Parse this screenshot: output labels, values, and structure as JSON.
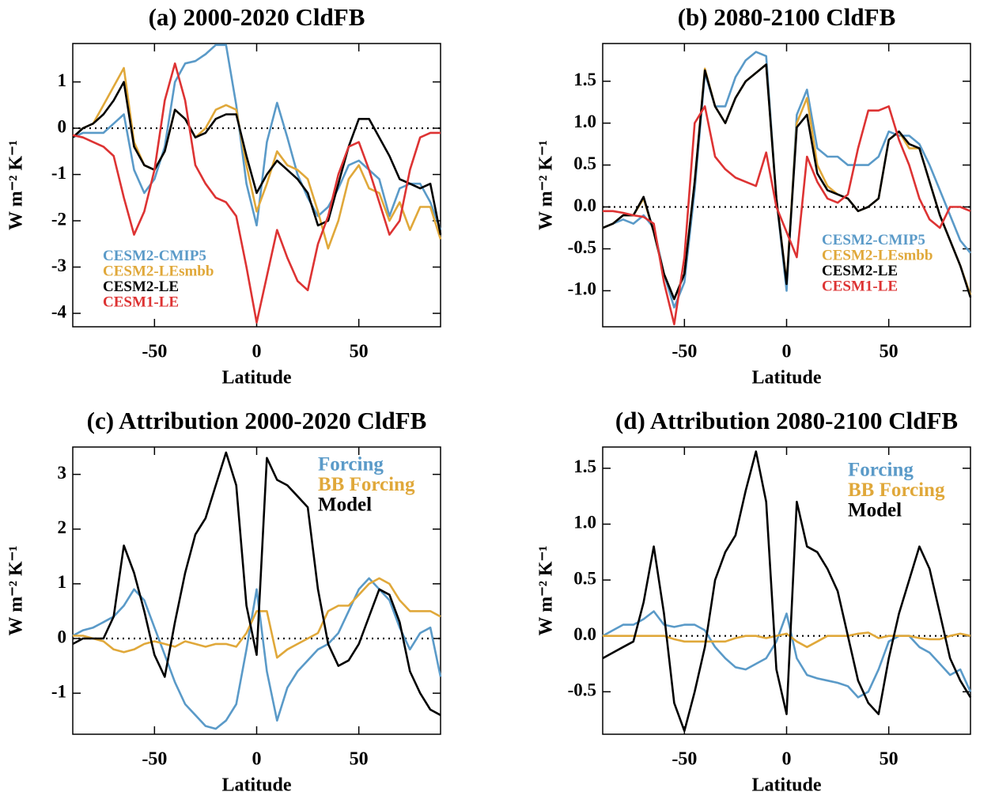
{
  "chart_data": [
    {
      "type": "line",
      "title": "(a) 2000-2020 CldFB",
      "xlabel": "Latitude",
      "ylabel": "W m⁻² K⁻¹",
      "x": [
        -90,
        -85,
        -80,
        -75,
        -70,
        -65,
        -60,
        -55,
        -50,
        -45,
        -40,
        -35,
        -30,
        -25,
        -20,
        -15,
        -10,
        -5,
        0,
        5,
        10,
        15,
        20,
        25,
        30,
        35,
        40,
        45,
        50,
        55,
        60,
        65,
        70,
        75,
        80,
        85,
        90
      ],
      "xlim": [
        -90,
        90
      ],
      "xticks": [
        -50,
        0,
        50
      ],
      "ylim": [
        -4.29,
        1.83
      ],
      "yticks": [
        -4,
        -3,
        -2,
        -1,
        0,
        1
      ],
      "hline": 0,
      "legend": "lower-left",
      "series": [
        {
          "name": "CESM2-CMIP5",
          "color": "#5a9ac8",
          "values": [
            -0.2,
            -0.1,
            -0.1,
            -0.1,
            0.1,
            0.3,
            -0.9,
            -1.4,
            -1.1,
            -0.4,
            1.0,
            1.4,
            1.45,
            1.6,
            1.8,
            1.8,
            0.5,
            -1.2,
            -2.1,
            -0.3,
            0.55,
            -0.2,
            -1.0,
            -1.5,
            -1.9,
            -1.7,
            -1.3,
            -0.8,
            -0.7,
            -0.9,
            -1.1,
            -1.9,
            -1.3,
            -1.2,
            -1.2,
            -1.6,
            -2.2
          ]
        },
        {
          "name": "CESM2-LEsmbb",
          "color": "#e0a83a",
          "values": [
            -0.2,
            0.0,
            0.1,
            0.5,
            0.9,
            1.3,
            -0.3,
            -0.8,
            -0.9,
            -0.5,
            0.4,
            0.2,
            -0.2,
            0.0,
            0.4,
            0.5,
            0.4,
            -0.8,
            -1.8,
            -1.2,
            -0.5,
            -0.8,
            -0.9,
            -1.1,
            -1.8,
            -2.6,
            -2.0,
            -1.1,
            -0.8,
            -1.3,
            -1.4,
            -2.0,
            -1.6,
            -2.2,
            -1.7,
            -1.7,
            -2.4
          ]
        },
        {
          "name": "CESM2-LE",
          "color": "#000000",
          "values": [
            -0.2,
            0.0,
            0.1,
            0.3,
            0.6,
            1.0,
            -0.4,
            -0.8,
            -0.9,
            -0.5,
            0.4,
            0.2,
            -0.2,
            -0.1,
            0.2,
            0.3,
            0.3,
            -0.6,
            -1.4,
            -1.0,
            -0.7,
            -0.9,
            -1.1,
            -1.4,
            -2.1,
            -2.0,
            -1.2,
            -0.4,
            0.2,
            0.2,
            -0.2,
            -0.6,
            -1.1,
            -1.2,
            -1.3,
            -1.2,
            -2.3
          ]
        },
        {
          "name": "CESM1-LE",
          "color": "#dd3333",
          "values": [
            -0.15,
            -0.2,
            -0.3,
            -0.4,
            -0.6,
            -1.5,
            -2.3,
            -1.8,
            -0.9,
            0.6,
            1.4,
            0.6,
            -0.8,
            -1.2,
            -1.5,
            -1.6,
            -1.9,
            -3.0,
            -4.2,
            -3.2,
            -2.2,
            -2.8,
            -3.3,
            -3.5,
            -2.5,
            -1.9,
            -1.0,
            -0.4,
            -0.3,
            -0.9,
            -1.6,
            -2.3,
            -2.0,
            -0.9,
            -0.2,
            -0.1,
            -0.1
          ]
        }
      ]
    },
    {
      "type": "line",
      "title": "(b) 2080-2100 CldFB",
      "xlabel": "Latitude",
      "ylabel": "W m⁻² K⁻¹",
      "x": [
        -90,
        -85,
        -80,
        -75,
        -70,
        -65,
        -60,
        -55,
        -50,
        -45,
        -40,
        -35,
        -30,
        -25,
        -20,
        -15,
        -10,
        -5,
        0,
        5,
        10,
        15,
        20,
        25,
        30,
        35,
        40,
        45,
        50,
        55,
        60,
        65,
        70,
        75,
        80,
        85,
        90
      ],
      "xlim": [
        -90,
        90
      ],
      "xticks": [
        -50,
        0,
        50
      ],
      "ylim": [
        -1.43,
        1.95
      ],
      "yticks": [
        {
          "value": -1.0,
          "label": "-1.0"
        },
        -0.5,
        {
          "value": 0.0,
          "label": "0.0"
        },
        0.5,
        {
          "value": 1.0,
          "label": "1.0"
        },
        1.5
      ],
      "hline": 0,
      "legend": "lower-right",
      "series": [
        {
          "name": "CESM2-CMIP5",
          "color": "#5a9ac8",
          "values": [
            -0.25,
            -0.2,
            -0.15,
            -0.2,
            -0.1,
            -0.25,
            -0.8,
            -1.2,
            -0.9,
            0.2,
            1.6,
            1.2,
            1.2,
            1.55,
            1.75,
            1.85,
            1.8,
            0.1,
            -1.0,
            1.1,
            1.4,
            0.7,
            0.6,
            0.6,
            0.5,
            0.5,
            0.5,
            0.6,
            0.9,
            0.85,
            0.85,
            0.75,
            0.5,
            0.2,
            -0.1,
            -0.4,
            -0.55
          ]
        },
        {
          "name": "CESM2-LEsmbb",
          "color": "#e0a83a",
          "values": [
            -0.25,
            -0.2,
            -0.1,
            -0.1,
            0.1,
            -0.3,
            -0.8,
            -1.1,
            -0.8,
            0.3,
            1.65,
            1.2,
            1.0,
            1.3,
            1.5,
            1.6,
            1.7,
            0.1,
            -0.9,
            1.0,
            1.3,
            0.5,
            0.25,
            0.15,
            0.1,
            -0.05,
            0.0,
            0.1,
            0.8,
            0.9,
            0.7,
            0.7,
            0.3,
            -0.1,
            -0.4,
            -0.7,
            -1.05
          ]
        },
        {
          "name": "CESM2-LE",
          "color": "#000000",
          "values": [
            -0.25,
            -0.2,
            -0.1,
            -0.1,
            0.12,
            -0.3,
            -0.8,
            -1.1,
            -0.8,
            0.3,
            1.63,
            1.2,
            1.0,
            1.3,
            1.5,
            1.6,
            1.7,
            0.1,
            -0.92,
            0.95,
            1.1,
            0.4,
            0.2,
            0.15,
            0.1,
            -0.05,
            0.0,
            0.1,
            0.8,
            0.9,
            0.75,
            0.7,
            0.3,
            -0.1,
            -0.4,
            -0.7,
            -1.08
          ]
        },
        {
          "name": "CESM1-LE",
          "color": "#dd3333",
          "values": [
            -0.05,
            -0.05,
            -0.07,
            -0.1,
            -0.12,
            -0.2,
            -0.9,
            -1.4,
            -0.6,
            1.0,
            1.2,
            0.6,
            0.45,
            0.35,
            0.3,
            0.25,
            0.65,
            0.0,
            -0.3,
            -0.6,
            0.6,
            0.3,
            0.1,
            0.05,
            0.15,
            0.7,
            1.15,
            1.15,
            1.2,
            0.8,
            0.5,
            0.1,
            -0.15,
            -0.25,
            0.0,
            0.0,
            -0.05
          ]
        }
      ]
    },
    {
      "type": "line",
      "title": "(c) Attribution 2000-2020 CldFB",
      "xlabel": "Latitude",
      "ylabel": "W m⁻² K⁻¹",
      "x": [
        -90,
        -85,
        -80,
        -75,
        -70,
        -65,
        -60,
        -55,
        -50,
        -45,
        -40,
        -35,
        -30,
        -25,
        -20,
        -15,
        -10,
        -5,
        0,
        5,
        10,
        15,
        20,
        25,
        30,
        35,
        40,
        45,
        50,
        55,
        60,
        65,
        70,
        75,
        80,
        85,
        90
      ],
      "xlim": [
        -90,
        90
      ],
      "xticks": [
        -50,
        0,
        50
      ],
      "ylim": [
        -1.75,
        3.5
      ],
      "yticks": [
        -1,
        0,
        1,
        2,
        3
      ],
      "hline": 0,
      "legend": "upper-right",
      "series": [
        {
          "name": "Forcing",
          "color": "#5a9ac8",
          "values": [
            0.05,
            0.15,
            0.2,
            0.3,
            0.4,
            0.6,
            0.9,
            0.7,
            0.2,
            -0.3,
            -0.8,
            -1.2,
            -1.4,
            -1.6,
            -1.65,
            -1.5,
            -1.2,
            -0.2,
            0.9,
            -0.6,
            -1.5,
            -0.9,
            -0.6,
            -0.4,
            -0.2,
            -0.1,
            0.1,
            0.5,
            0.9,
            1.1,
            0.9,
            0.7,
            0.2,
            -0.2,
            0.1,
            0.2,
            -0.7
          ]
        },
        {
          "name": "BB Forcing",
          "color": "#e0a83a",
          "values": [
            0.05,
            0.05,
            0.0,
            -0.05,
            -0.2,
            -0.25,
            -0.2,
            -0.1,
            -0.05,
            -0.1,
            -0.15,
            -0.05,
            -0.1,
            -0.15,
            -0.1,
            -0.1,
            -0.15,
            0.1,
            0.5,
            0.5,
            -0.35,
            -0.2,
            -0.1,
            0.0,
            0.1,
            0.5,
            0.6,
            0.6,
            0.8,
            1.0,
            1.1,
            1.0,
            0.7,
            0.5,
            0.5,
            0.5,
            0.4
          ]
        },
        {
          "name": "Model",
          "color": "#000000",
          "values": [
            -0.1,
            0.0,
            0.0,
            0.0,
            0.4,
            1.7,
            1.2,
            0.5,
            -0.3,
            -0.7,
            0.3,
            1.2,
            1.9,
            2.2,
            2.8,
            3.4,
            2.8,
            0.6,
            -0.3,
            3.3,
            2.9,
            2.8,
            2.6,
            2.4,
            0.9,
            -0.1,
            -0.5,
            -0.4,
            -0.1,
            0.4,
            0.9,
            0.8,
            0.3,
            -0.6,
            -1.0,
            -1.3,
            -1.4
          ]
        }
      ]
    },
    {
      "type": "line",
      "title": "(d) Attribution 2080-2100 CldFB",
      "xlabel": "Latitude",
      "ylabel": "W m⁻² K⁻¹",
      "x": [
        -90,
        -85,
        -80,
        -75,
        -70,
        -65,
        -60,
        -55,
        -50,
        -45,
        -40,
        -35,
        -30,
        -25,
        -20,
        -15,
        -10,
        -5,
        0,
        5,
        10,
        15,
        20,
        25,
        30,
        35,
        40,
        45,
        50,
        55,
        60,
        65,
        70,
        75,
        80,
        85,
        90
      ],
      "xlim": [
        -90,
        90
      ],
      "xticks": [
        -50,
        0,
        50
      ],
      "ylim": [
        -0.88,
        1.69
      ],
      "yticks": [
        -0.5,
        {
          "value": 0.0,
          "label": "0.0"
        },
        0.5,
        {
          "value": 1.0,
          "label": "1.0"
        },
        1.5
      ],
      "hline": 0,
      "legend": "upper-right",
      "series": [
        {
          "name": "Forcing",
          "color": "#5a9ac8",
          "values": [
            0.0,
            0.05,
            0.1,
            0.1,
            0.15,
            0.22,
            0.1,
            0.08,
            0.1,
            0.1,
            0.05,
            -0.1,
            -0.2,
            -0.28,
            -0.3,
            -0.25,
            -0.2,
            -0.05,
            0.2,
            -0.2,
            -0.35,
            -0.38,
            -0.4,
            -0.42,
            -0.45,
            -0.55,
            -0.5,
            -0.3,
            -0.05,
            0.0,
            0.0,
            -0.1,
            -0.15,
            -0.25,
            -0.35,
            -0.3,
            -0.5
          ]
        },
        {
          "name": "BB Forcing",
          "color": "#e0a83a",
          "values": [
            0,
            0,
            0,
            0,
            0,
            0,
            0,
            -0.03,
            -0.05,
            -0.05,
            -0.05,
            -0.05,
            -0.05,
            -0.02,
            0,
            0,
            -0.02,
            0,
            0.02,
            -0.05,
            -0.1,
            -0.05,
            0,
            0,
            0,
            0.02,
            0.03,
            -0.02,
            0,
            0,
            0,
            -0.02,
            -0.03,
            -0.03,
            0,
            0.02,
            0
          ]
        },
        {
          "name": "Model",
          "color": "#000000",
          "values": [
            -0.2,
            -0.15,
            -0.1,
            -0.05,
            0.3,
            0.8,
            0.2,
            -0.6,
            -0.85,
            -0.5,
            -0.1,
            0.5,
            0.75,
            0.9,
            1.3,
            1.65,
            1.2,
            -0.3,
            -0.7,
            1.2,
            0.8,
            0.75,
            0.6,
            0.4,
            0.0,
            -0.4,
            -0.6,
            -0.7,
            -0.2,
            0.2,
            0.5,
            0.8,
            0.6,
            0.2,
            -0.2,
            -0.4,
            -0.55
          ]
        }
      ]
    }
  ]
}
